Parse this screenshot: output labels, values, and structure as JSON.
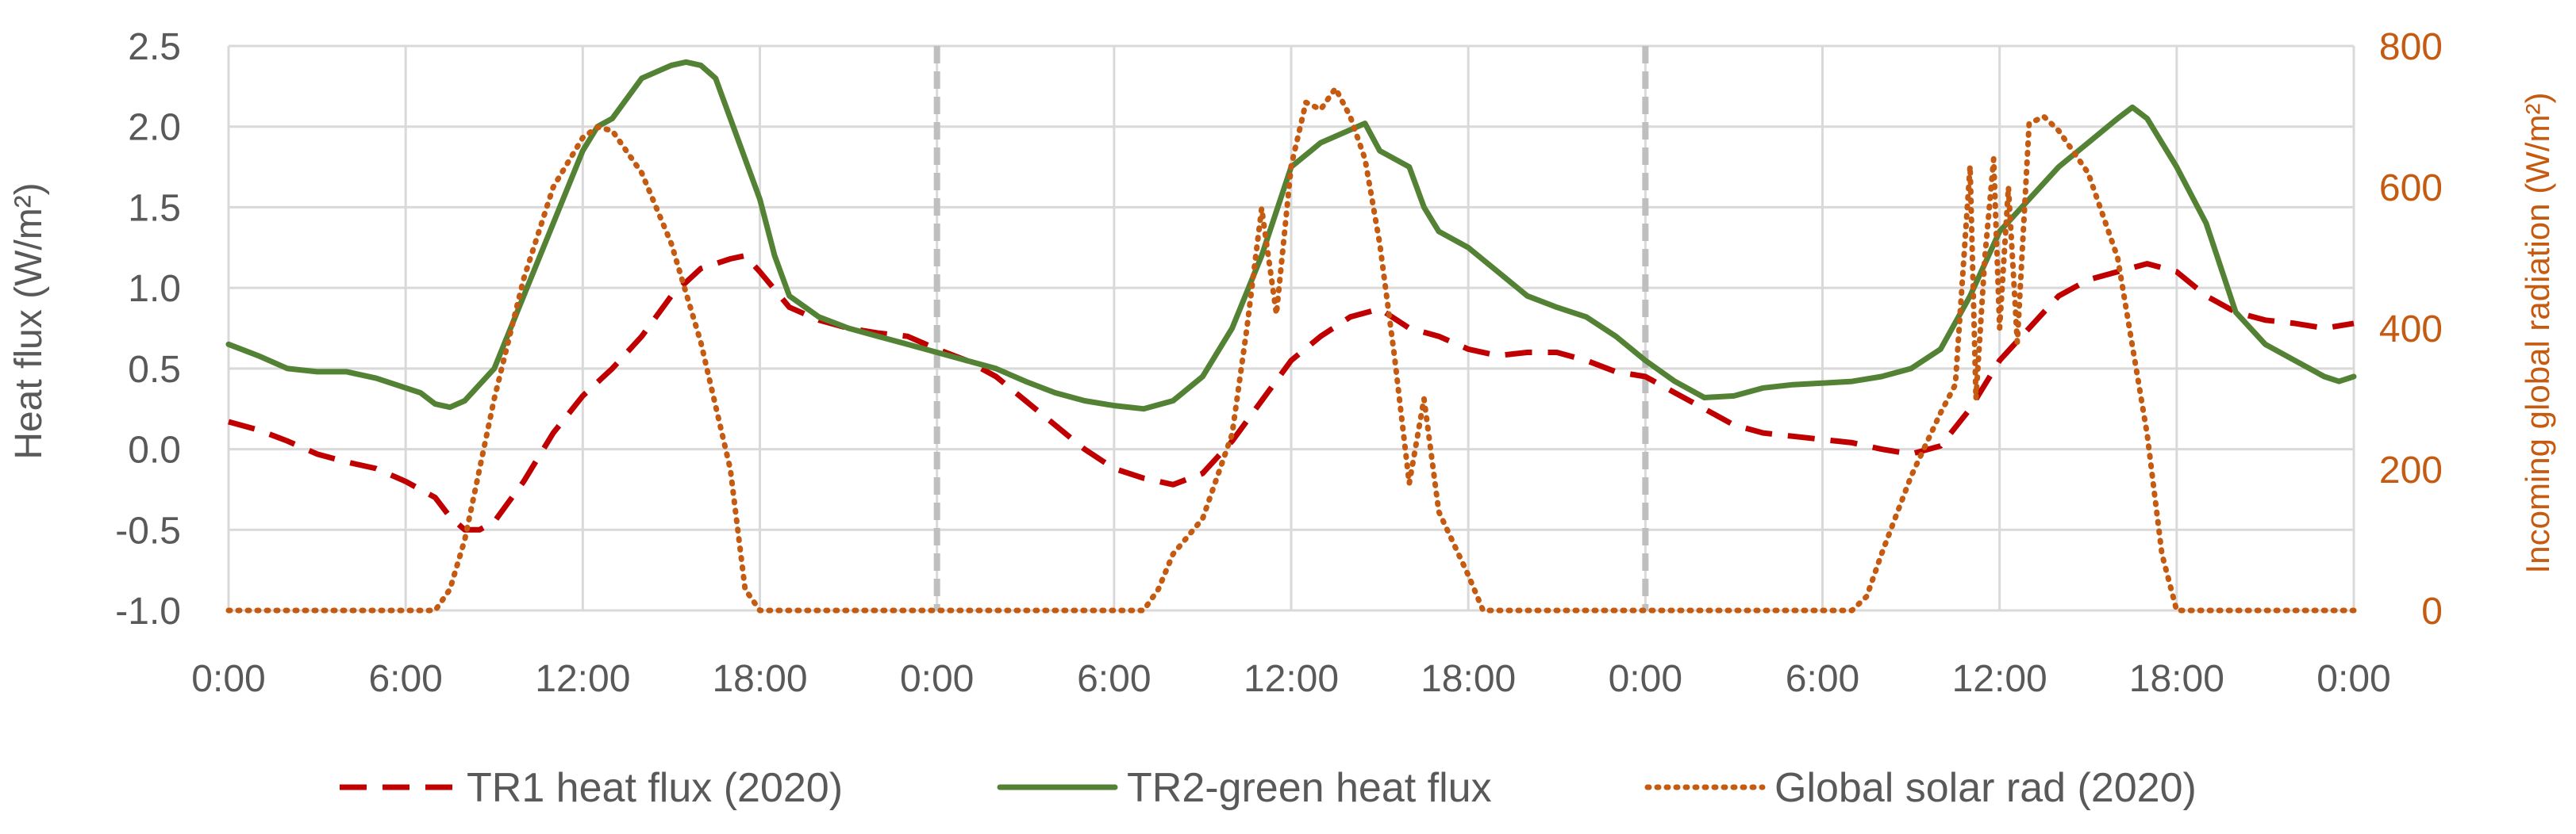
{
  "chart_data": {
    "type": "line",
    "title": "",
    "xlabel": "",
    "ylabel": "Heat flux (W/m²)",
    "ylabel_right": "Incoming global radiation (W/m²)",
    "ylim": [
      -1.0,
      2.5
    ],
    "ylim_right": [
      0,
      800
    ],
    "xlim": [
      0,
      72
    ],
    "x_unit": "hours",
    "grid": true,
    "legend_position": "bottom",
    "y_ticks": [
      "-1.0",
      "-0.5",
      "0.0",
      "0.5",
      "1.0",
      "1.5",
      "2.0",
      "2.5"
    ],
    "y_tick_values": [
      -1.0,
      -0.5,
      0.0,
      0.5,
      1.0,
      1.5,
      2.0,
      2.5
    ],
    "y_right_ticks": [
      "0",
      "200",
      "400",
      "600",
      "800"
    ],
    "y_right_tick_values": [
      0,
      200,
      400,
      600,
      800
    ],
    "x_ticks": [
      "0:00",
      "6:00",
      "12:00",
      "18:00",
      "0:00",
      "6:00",
      "12:00",
      "18:00",
      "0:00",
      "6:00",
      "12:00",
      "18:00",
      "0:00"
    ],
    "x_tick_values": [
      0,
      6,
      12,
      18,
      24,
      30,
      36,
      42,
      48,
      54,
      60,
      66,
      72
    ],
    "day_separators": [
      24,
      48
    ],
    "series": [
      {
        "name": "TR1 heat flux (2020)",
        "axis": "left",
        "style": "dashed",
        "color": "#c00000",
        "points": [
          [
            0,
            0.17
          ],
          [
            1,
            0.12
          ],
          [
            2,
            0.05
          ],
          [
            3,
            -0.03
          ],
          [
            4,
            -0.08
          ],
          [
            5,
            -0.12
          ],
          [
            6,
            -0.2
          ],
          [
            7,
            -0.3
          ],
          [
            7.5,
            -0.42
          ],
          [
            8,
            -0.5
          ],
          [
            8.5,
            -0.5
          ],
          [
            9,
            -0.45
          ],
          [
            10,
            -0.2
          ],
          [
            11,
            0.1
          ],
          [
            12,
            0.33
          ],
          [
            13,
            0.5
          ],
          [
            14,
            0.7
          ],
          [
            15,
            0.95
          ],
          [
            16,
            1.12
          ],
          [
            17,
            1.18
          ],
          [
            17.5,
            1.2
          ],
          [
            18,
            1.1
          ],
          [
            19,
            0.88
          ],
          [
            20,
            0.8
          ],
          [
            21,
            0.75
          ],
          [
            22,
            0.72
          ],
          [
            23,
            0.7
          ],
          [
            24,
            0.62
          ],
          [
            25,
            0.55
          ],
          [
            26,
            0.45
          ],
          [
            27,
            0.3
          ],
          [
            28,
            0.15
          ],
          [
            29,
            0.0
          ],
          [
            30,
            -0.12
          ],
          [
            31,
            -0.18
          ],
          [
            32,
            -0.22
          ],
          [
            33,
            -0.15
          ],
          [
            34,
            0.05
          ],
          [
            35,
            0.3
          ],
          [
            36,
            0.55
          ],
          [
            37,
            0.7
          ],
          [
            38,
            0.82
          ],
          [
            39,
            0.87
          ],
          [
            40,
            0.75
          ],
          [
            41,
            0.7
          ],
          [
            42,
            0.62
          ],
          [
            43,
            0.58
          ],
          [
            44,
            0.6
          ],
          [
            45,
            0.6
          ],
          [
            46,
            0.55
          ],
          [
            47,
            0.48
          ],
          [
            48,
            0.45
          ],
          [
            49,
            0.35
          ],
          [
            50,
            0.25
          ],
          [
            51,
            0.15
          ],
          [
            52,
            0.1
          ],
          [
            53,
            0.08
          ],
          [
            54,
            0.06
          ],
          [
            55,
            0.04
          ],
          [
            56,
            0.0
          ],
          [
            57,
            -0.03
          ],
          [
            58,
            0.02
          ],
          [
            59,
            0.25
          ],
          [
            60,
            0.55
          ],
          [
            61,
            0.75
          ],
          [
            62,
            0.95
          ],
          [
            63,
            1.05
          ],
          [
            64,
            1.1
          ],
          [
            65,
            1.15
          ],
          [
            66,
            1.1
          ],
          [
            67,
            0.95
          ],
          [
            68,
            0.85
          ],
          [
            69,
            0.8
          ],
          [
            70,
            0.78
          ],
          [
            71,
            0.75
          ],
          [
            72,
            0.78
          ]
        ]
      },
      {
        "name": "TR2-green heat flux",
        "axis": "left",
        "style": "solid",
        "color": "#548235",
        "points": [
          [
            0,
            0.65
          ],
          [
            1,
            0.58
          ],
          [
            2,
            0.5
          ],
          [
            3,
            0.48
          ],
          [
            4,
            0.48
          ],
          [
            5,
            0.44
          ],
          [
            6,
            0.38
          ],
          [
            6.5,
            0.35
          ],
          [
            7,
            0.28
          ],
          [
            7.5,
            0.26
          ],
          [
            8,
            0.3
          ],
          [
            9,
            0.5
          ],
          [
            10,
            0.95
          ],
          [
            11,
            1.4
          ],
          [
            12,
            1.85
          ],
          [
            12.5,
            2.0
          ],
          [
            13,
            2.05
          ],
          [
            14,
            2.3
          ],
          [
            15,
            2.38
          ],
          [
            15.5,
            2.4
          ],
          [
            16,
            2.38
          ],
          [
            16.5,
            2.3
          ],
          [
            17,
            2.05
          ],
          [
            18,
            1.55
          ],
          [
            18.5,
            1.2
          ],
          [
            19,
            0.95
          ],
          [
            20,
            0.82
          ],
          [
            21,
            0.75
          ],
          [
            22,
            0.7
          ],
          [
            23,
            0.65
          ],
          [
            24,
            0.6
          ],
          [
            25,
            0.55
          ],
          [
            26,
            0.5
          ],
          [
            27,
            0.42
          ],
          [
            28,
            0.35
          ],
          [
            29,
            0.3
          ],
          [
            30,
            0.27
          ],
          [
            31,
            0.25
          ],
          [
            32,
            0.3
          ],
          [
            33,
            0.45
          ],
          [
            34,
            0.75
          ],
          [
            35,
            1.2
          ],
          [
            36,
            1.75
          ],
          [
            37,
            1.9
          ],
          [
            38,
            1.98
          ],
          [
            38.5,
            2.02
          ],
          [
            39,
            1.85
          ],
          [
            40,
            1.75
          ],
          [
            40.5,
            1.5
          ],
          [
            41,
            1.35
          ],
          [
            42,
            1.25
          ],
          [
            43,
            1.1
          ],
          [
            44,
            0.95
          ],
          [
            45,
            0.88
          ],
          [
            46,
            0.82
          ],
          [
            47,
            0.7
          ],
          [
            48,
            0.55
          ],
          [
            49,
            0.42
          ],
          [
            50,
            0.32
          ],
          [
            51,
            0.33
          ],
          [
            52,
            0.38
          ],
          [
            53,
            0.4
          ],
          [
            54,
            0.41
          ],
          [
            55,
            0.42
          ],
          [
            56,
            0.45
          ],
          [
            57,
            0.5
          ],
          [
            58,
            0.62
          ],
          [
            59,
            0.95
          ],
          [
            60,
            1.35
          ],
          [
            61,
            1.55
          ],
          [
            62,
            1.75
          ],
          [
            63,
            1.9
          ],
          [
            64,
            2.05
          ],
          [
            64.5,
            2.12
          ],
          [
            65,
            2.05
          ],
          [
            65.5,
            1.9
          ],
          [
            66,
            1.75
          ],
          [
            67,
            1.4
          ],
          [
            68,
            0.85
          ],
          [
            69,
            0.65
          ],
          [
            70,
            0.55
          ],
          [
            71,
            0.45
          ],
          [
            71.5,
            0.42
          ],
          [
            72,
            0.45
          ]
        ]
      },
      {
        "name": "Global solar rad (2020)",
        "axis": "right",
        "style": "dotted",
        "color": "#c55a11",
        "points": [
          [
            0,
            0
          ],
          [
            7,
            0
          ],
          [
            7.5,
            30
          ],
          [
            8,
            100
          ],
          [
            9,
            300
          ],
          [
            10,
            470
          ],
          [
            11,
            600
          ],
          [
            12,
            670
          ],
          [
            12.5,
            685
          ],
          [
            13,
            680
          ],
          [
            14,
            620
          ],
          [
            15,
            520
          ],
          [
            16,
            380
          ],
          [
            17,
            200
          ],
          [
            17.5,
            30
          ],
          [
            18,
            0
          ],
          [
            24,
            0
          ],
          [
            31,
            0
          ],
          [
            31.5,
            30
          ],
          [
            32,
            80
          ],
          [
            33,
            130
          ],
          [
            34,
            250
          ],
          [
            34.5,
            400
          ],
          [
            35,
            570
          ],
          [
            35.5,
            420
          ],
          [
            36,
            630
          ],
          [
            36.5,
            720
          ],
          [
            37,
            710
          ],
          [
            37.5,
            740
          ],
          [
            38,
            700
          ],
          [
            38.5,
            640
          ],
          [
            39,
            520
          ],
          [
            39.5,
            360
          ],
          [
            40,
            180
          ],
          [
            40.5,
            300
          ],
          [
            41,
            140
          ],
          [
            42,
            50
          ],
          [
            42.5,
            0
          ],
          [
            48,
            0
          ],
          [
            55,
            0
          ],
          [
            55.5,
            20
          ],
          [
            56,
            80
          ],
          [
            57,
            190
          ],
          [
            58,
            280
          ],
          [
            58.5,
            320
          ],
          [
            59,
            630
          ],
          [
            59.2,
            300
          ],
          [
            59.5,
            500
          ],
          [
            59.8,
            640
          ],
          [
            60,
            400
          ],
          [
            60.3,
            600
          ],
          [
            60.6,
            380
          ],
          [
            61,
            690
          ],
          [
            61.5,
            700
          ],
          [
            62,
            680
          ],
          [
            63,
            620
          ],
          [
            64,
            500
          ],
          [
            65,
            250
          ],
          [
            65.5,
            80
          ],
          [
            66,
            0
          ],
          [
            72,
            0
          ]
        ]
      }
    ]
  }
}
